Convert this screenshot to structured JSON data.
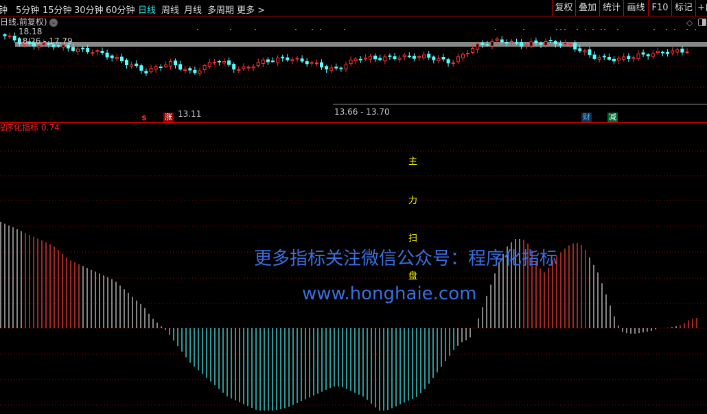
{
  "toolbar": {
    "periods": [
      "钟",
      "5分钟",
      "15分钟",
      "30分钟",
      "60分钟",
      "日线",
      "周线",
      "月线",
      "多周期",
      "更多 >"
    ],
    "active_period": "日线",
    "right_buttons": [
      "复权",
      "叠加",
      "统计",
      "画线",
      "F10",
      "标记",
      "+自"
    ]
  },
  "main_chart": {
    "title": "日线.前复权)",
    "dropdown_icon": "chevron-down-circle-icon",
    "high_label": "18.18",
    "range_label": "18.26 - 17.79",
    "low_label": "13.11",
    "mid_label": "13.66 - 13.70",
    "markers": {
      "dollar": "$",
      "zhang": "涨",
      "cai": "财",
      "jian": "减"
    },
    "colors": {
      "up": "#ff3232",
      "down": "#54ffff",
      "grid": "#b00000",
      "dots": "#ff00ff"
    },
    "close_keypoints": [
      18.2,
      17.6,
      17.6,
      17.3,
      17.1,
      16.5,
      15.8,
      16.4,
      15.7,
      16.6,
      15.9,
      16.5,
      16.7,
      16.4,
      15.9,
      16.7,
      16.7,
      16.8,
      16.8,
      16.4,
      17.5,
      17.9,
      17.6,
      17.8,
      17.6,
      16.8,
      16.6,
      16.9,
      17.1,
      17.2
    ]
  },
  "indicator": {
    "title": "程序化指标",
    "value": "0.74",
    "vertical_text": [
      "主",
      "力",
      "扫",
      "盘"
    ],
    "colors": {
      "positive_up": "#ff3a3a",
      "neutral": "#cccccc",
      "negative": "#44eeee"
    }
  },
  "chart_data": {
    "type": "bar",
    "series": [
      {
        "values": [
          1.55,
          1.5,
          1.45,
          1.4,
          1.35,
          1.3,
          1.25,
          1.2,
          1.1,
          1.0,
          0.95,
          0.9,
          0.85,
          0.8,
          0.75,
          0.7,
          0.6,
          0.5,
          0.4,
          0.3,
          0.15,
          0.05,
          -0.05,
          -0.2,
          -0.35,
          -0.5,
          -0.6,
          -0.7,
          -0.8,
          -0.9,
          -1.0,
          -1.05,
          -1.1,
          -1.15,
          -1.2,
          -1.2,
          -1.2,
          -1.18,
          -1.15,
          -1.1,
          -1.05,
          -1.0,
          -0.95,
          -0.9,
          -0.85,
          -0.85,
          -0.9,
          -0.95,
          -1.0,
          -1.1,
          -1.2,
          -1.2,
          -1.15,
          -1.1,
          -1.05,
          -1.0,
          -0.9,
          -0.75,
          -0.6,
          -0.45,
          -0.3,
          -0.2,
          -0.15,
          0.1,
          0.4,
          0.7,
          1.0,
          1.2,
          1.3,
          1.3,
          1.2,
          0.9,
          0.8,
          1.0,
          1.1,
          1.2,
          1.25,
          1.2,
          1.0,
          0.8,
          0.5,
          0.2,
          -0.05,
          -0.08,
          -0.08,
          -0.06,
          -0.04,
          0.0,
          0.0,
          0.02,
          0.05,
          0.12,
          0.15
        ]
      }
    ]
  },
  "watermark": {
    "line1": "更多指标关注微信公众号：程序化指标",
    "line2": "www.honghaie.com"
  }
}
